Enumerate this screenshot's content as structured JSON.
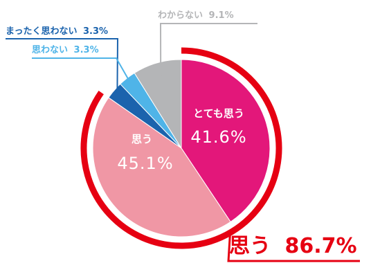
{
  "chart_data": {
    "type": "pie",
    "slices": [
      {
        "label": "とても思う",
        "value": 41.6,
        "value_text": "41.6%",
        "color": "#e3177a"
      },
      {
        "label": "思う",
        "value": 45.1,
        "value_text": "45.1%",
        "color": "#f097a5"
      },
      {
        "label": "まったく思わない",
        "value": 3.3,
        "value_text": "3.3%",
        "color": "#1b63ad"
      },
      {
        "label": "思わない",
        "value": 3.3,
        "value_text": "3.3%",
        "color": "#4fb4e8"
      },
      {
        "label": "わからない",
        "value": 9.1,
        "value_text": "9.1%",
        "color": "#b4b5b7"
      }
    ],
    "total": {
      "label": "思う",
      "value": 86.7,
      "value_text": "86.7%",
      "color": "#e60012"
    }
  }
}
